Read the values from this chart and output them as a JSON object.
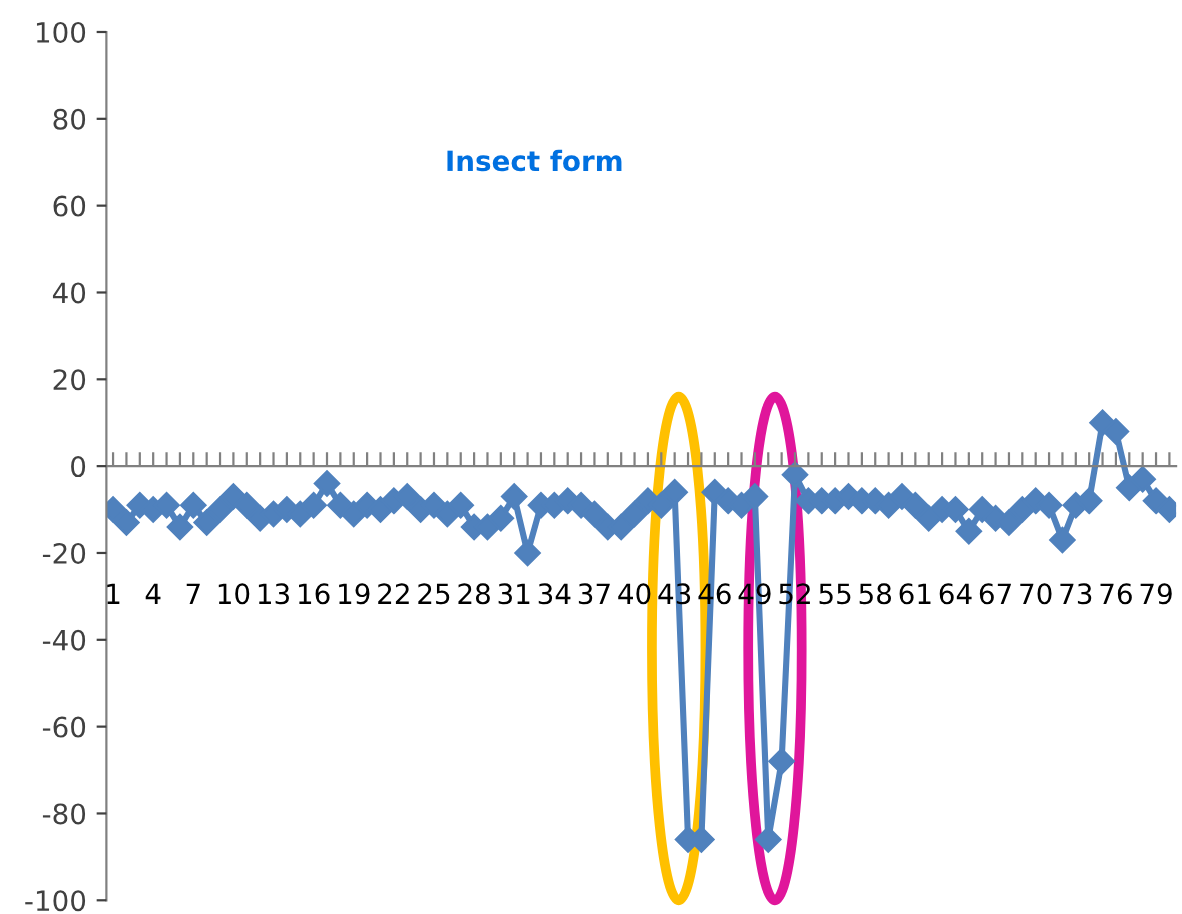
{
  "chart_data": {
    "type": "line",
    "title": "Insect form",
    "categories": [
      "1",
      null,
      null,
      "4",
      null,
      null,
      "7",
      null,
      null,
      "10",
      null,
      null,
      "13",
      null,
      null,
      "16",
      null,
      null,
      "19",
      null,
      null,
      "22",
      null,
      null,
      "25",
      null,
      null,
      "28",
      null,
      null,
      "31",
      null,
      null,
      "34",
      null,
      null,
      "37",
      null,
      null,
      "40",
      null,
      null,
      "43",
      null,
      null,
      "46",
      null,
      null,
      "49",
      null,
      null,
      "52",
      null,
      null,
      "55",
      null,
      null,
      "58",
      null,
      null,
      "61",
      null,
      null,
      "64",
      null,
      null,
      "67",
      null,
      null,
      "70",
      null,
      null,
      "73",
      null,
      null,
      "76",
      null,
      null,
      "79",
      null
    ],
    "series": [
      {
        "color": "#4f81bd",
        "values": [
          -10,
          -13,
          -9,
          -10,
          -9,
          -14,
          -9,
          -13,
          -10,
          -7,
          -9,
          -12,
          -11,
          -10,
          -11,
          -9,
          -4,
          -9,
          -11,
          -9,
          -10,
          -8,
          -7,
          -10,
          -9,
          -11,
          -9,
          -14,
          -14,
          -12,
          -7,
          -20,
          -9,
          -9,
          -8,
          -9,
          -11,
          -14,
          -14,
          -11,
          -8,
          -9,
          -6,
          -86,
          -86,
          -6,
          -8,
          -9,
          -7,
          -86,
          -68,
          -2,
          -8,
          -8,
          -8,
          -7,
          -8,
          -8,
          -9,
          -7,
          -9,
          -12,
          -10,
          -10,
          -15,
          -10,
          -12,
          -13,
          -10,
          -8,
          -9,
          -17,
          -9,
          -8,
          10,
          8,
          -5,
          -3,
          -8,
          -10
        ]
      }
    ],
    "ylim": [
      -100,
      100
    ],
    "yticks": [
      -100,
      -80,
      -60,
      -40,
      -20,
      0,
      20,
      40,
      60,
      80,
      100
    ],
    "marker": "diamond",
    "line_style": "solid",
    "legend": false
  }
}
